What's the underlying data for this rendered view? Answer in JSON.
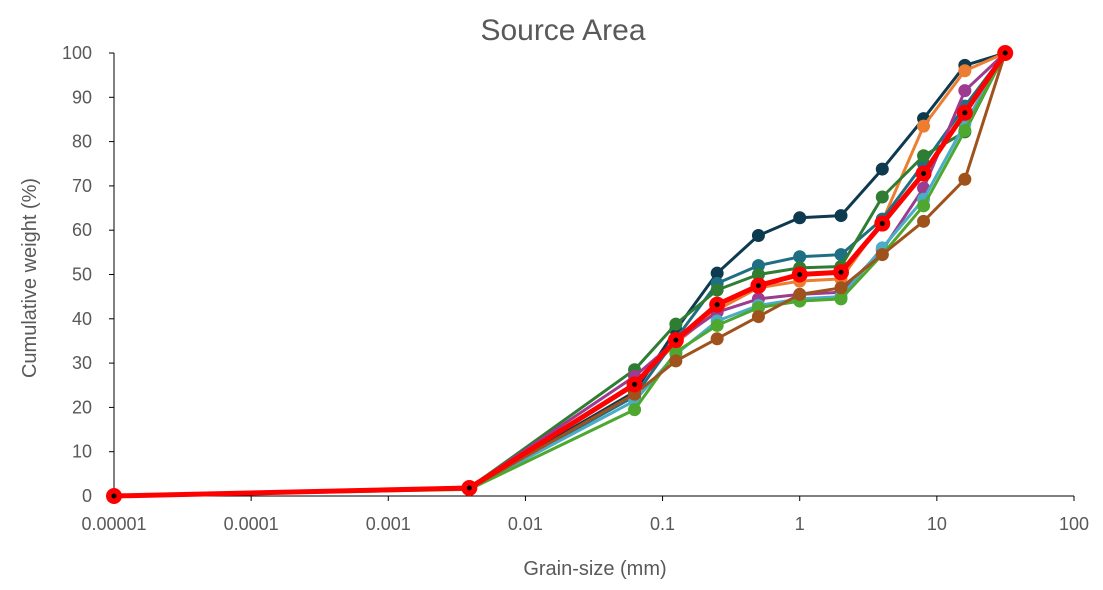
{
  "chart_data": {
    "type": "line",
    "title": "Source Area",
    "xlabel": "Grain-size (mm)",
    "ylabel": "Cumulative weight (%)",
    "x_scale": "log",
    "xlim": [
      1e-05,
      100
    ],
    "ylim": [
      0,
      100
    ],
    "x_ticks": [
      "0.00001",
      "0.0001",
      "0.001",
      "0.01",
      "0.1",
      "1",
      "10",
      "100"
    ],
    "y_ticks": [
      "0",
      "10",
      "20",
      "30",
      "40",
      "50",
      "60",
      "70",
      "80",
      "90",
      "100"
    ],
    "grid": false,
    "legend": "none",
    "x": [
      1e-05,
      0.0039,
      0.0625,
      0.125,
      0.25,
      0.5,
      1,
      2,
      4,
      8,
      16,
      31.5
    ],
    "series": [
      {
        "color": "#0D3A4F",
        "values": [
          0,
          1.8,
          23.5,
          37.5,
          50.3,
          58.8,
          62.8,
          63.3,
          73.8,
          85.2,
          97.2,
          100
        ]
      },
      {
        "color": "#ED7D31",
        "values": [
          0,
          1.8,
          25.0,
          34.5,
          42.0,
          47.0,
          48.5,
          49.0,
          62.0,
          83.5,
          96.0,
          100
        ]
      },
      {
        "color": "#1F6F84",
        "values": [
          0,
          1.7,
          22.5,
          35.5,
          48.0,
          52.0,
          54.0,
          54.5,
          62.5,
          75.0,
          88.0,
          100
        ]
      },
      {
        "color": "#2E7D32",
        "values": [
          0,
          1.8,
          28.5,
          38.8,
          46.5,
          50.0,
          51.5,
          51.8,
          67.5,
          76.8,
          82.2,
          100
        ]
      },
      {
        "color": "#9C3B8F",
        "values": [
          0,
          1.9,
          27.0,
          35.0,
          41.5,
          44.5,
          45.5,
          46.0,
          55.5,
          69.5,
          91.5,
          100
        ]
      },
      {
        "color": "#4BACC6",
        "values": [
          0,
          1.6,
          21.5,
          32.0,
          39.5,
          43.0,
          44.5,
          45.0,
          56.0,
          67.0,
          84.0,
          100
        ]
      },
      {
        "color": "#4EA72E",
        "values": [
          0,
          1.5,
          19.5,
          32.5,
          38.5,
          42.5,
          44.0,
          44.5,
          54.5,
          65.5,
          82.5,
          100
        ]
      },
      {
        "color": "#A0521D",
        "values": [
          0,
          1.6,
          23.0,
          30.5,
          35.5,
          40.5,
          45.5,
          47.0,
          54.5,
          62.0,
          71.5,
          100
        ]
      },
      {
        "color": "#FF0000",
        "emphasis": true,
        "values": [
          0,
          1.8,
          25.2,
          35.2,
          43.2,
          47.5,
          50.0,
          50.5,
          61.5,
          72.8,
          86.5,
          100
        ]
      }
    ]
  }
}
